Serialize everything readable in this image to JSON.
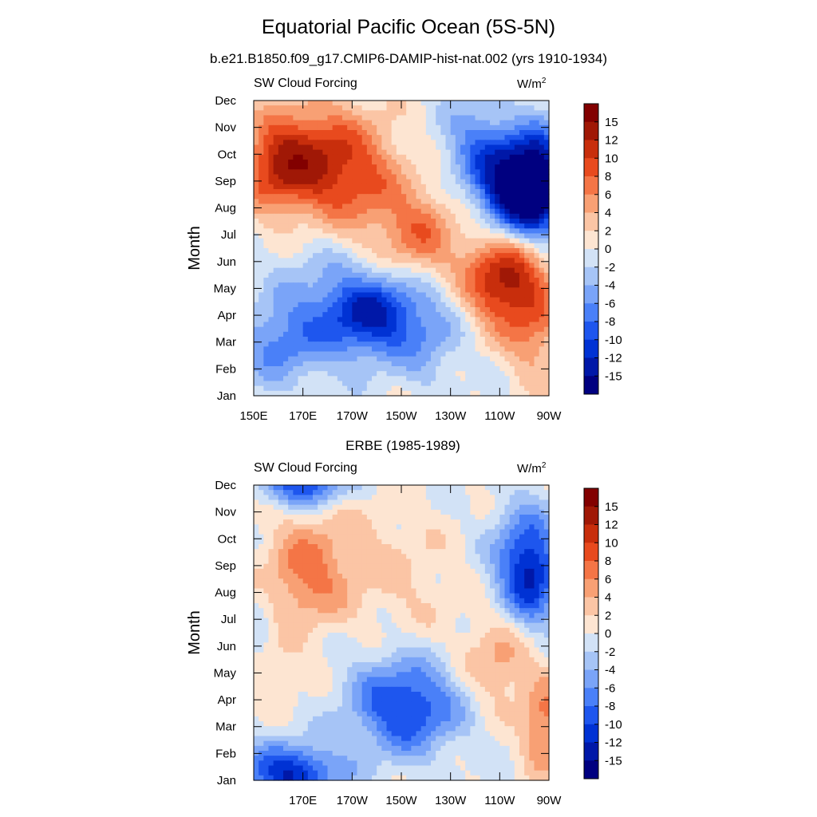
{
  "figure": {
    "title": "Equatorial Pacific Ocean (5S-5N)",
    "subtitle": "b.e21.B1850.f09_g17.CMIP6-DAMIP-hist-nat.002 (yrs 1910-1934)"
  },
  "colors": {
    "scale": [
      "#000080",
      "#0018a8",
      "#0032d4",
      "#1e56ee",
      "#4a80f8",
      "#7aa4f8",
      "#a6c4f6",
      "#d2e2f6",
      "#fde5d2",
      "#fbc5a5",
      "#f8a074",
      "#f47546",
      "#e84a1e",
      "#c82e0c",
      "#a01806",
      "#820000"
    ]
  },
  "chart_data": [
    {
      "type": "heatmap",
      "left_label": "SW Cloud Forcing",
      "units_base": "W/m",
      "units_exp": "2",
      "xlabel": "",
      "ylabel": "Month",
      "x_ticks": [
        "150E",
        "170E",
        "170W",
        "150W",
        "130W",
        "110W",
        "90W"
      ],
      "y_ticks": [
        "Jan",
        "Feb",
        "Mar",
        "Apr",
        "May",
        "Jun",
        "Jul",
        "Aug",
        "Sep",
        "Oct",
        "Nov",
        "Dec"
      ],
      "xlim": [
        150,
        270
      ],
      "ylim": [
        1,
        12
      ],
      "colorbar_labels": [
        "15",
        "12",
        "10",
        "8",
        "6",
        "4",
        "2",
        "0",
        "-2",
        "-4",
        "-6",
        "-8",
        "-10",
        "-12",
        "-15"
      ],
      "levels": [
        -15,
        -12,
        -10,
        -8,
        -6,
        -4,
        -2,
        0,
        2,
        4,
        6,
        8,
        10,
        12,
        15
      ],
      "features": [
        {
          "lon": 158,
          "month": 9.5,
          "amp": 6,
          "slon": 10,
          "smon": 1.2
        },
        {
          "lon": 170,
          "month": 9.8,
          "amp": 9,
          "slon": 14,
          "smon": 1.4
        },
        {
          "lon": 190,
          "month": 9.6,
          "amp": 5,
          "slon": 14,
          "smon": 1.5
        },
        {
          "lon": 195,
          "month": 8.6,
          "amp": 3,
          "slon": 12,
          "smon": 1.5
        },
        {
          "lon": 216,
          "month": 6.9,
          "amp": 5,
          "slon": 12,
          "smon": 1.2
        },
        {
          "lon": 220,
          "month": 7.3,
          "amp": 2,
          "slon": 10,
          "smon": 1.4
        },
        {
          "lon": 248,
          "month": 5.4,
          "amp": 9,
          "slon": 10,
          "smon": 1.2
        },
        {
          "lon": 260,
          "month": 5.0,
          "amp": 7,
          "slon": 10,
          "smon": 1.3
        },
        {
          "lon": 265,
          "month": 3.0,
          "amp": 4,
          "slon": 8,
          "smon": 1.2
        },
        {
          "lon": 258,
          "month": 8.8,
          "amp": -21,
          "slon": 10,
          "smon": 1.2
        },
        {
          "lon": 268,
          "month": 9.0,
          "amp": -8,
          "slon": 6,
          "smon": 1.5
        },
        {
          "lon": 240,
          "month": 10.3,
          "amp": -6,
          "slon": 10,
          "smon": 1.3
        },
        {
          "lon": 200,
          "month": 4.1,
          "amp": -9,
          "slon": 15,
          "smon": 1.1
        },
        {
          "lon": 190,
          "month": 3.7,
          "amp": -4,
          "slon": 17,
          "smon": 1.2
        },
        {
          "lon": 160,
          "month": 2.9,
          "amp": -6,
          "slon": 12,
          "smon": 1.1
        },
        {
          "lon": 222,
          "month": 3.0,
          "amp": -3,
          "slon": 10,
          "smon": 1.3
        },
        {
          "lon": 175,
          "month": 5.5,
          "amp": -2,
          "slon": 15,
          "smon": 1.4
        }
      ]
    },
    {
      "type": "heatmap",
      "panel_title": "ERBE (1985-1989)",
      "left_label": "SW Cloud Forcing",
      "units_base": "W/m",
      "units_exp": "2",
      "xlabel": "",
      "ylabel": "Month",
      "x_ticks": [
        "170E",
        "170W",
        "150W",
        "130W",
        "110W",
        "90W"
      ],
      "y_ticks": [
        "Jan",
        "Feb",
        "Mar",
        "Apr",
        "May",
        "Jun",
        "Jul",
        "Aug",
        "Sep",
        "Oct",
        "Nov",
        "Dec"
      ],
      "xlim": [
        150,
        270
      ],
      "ylim": [
        1,
        12
      ],
      "colorbar_labels": [
        "15",
        "12",
        "10",
        "8",
        "6",
        "4",
        "2",
        "0",
        "-2",
        "-4",
        "-6",
        "-8",
        "-10",
        "-12",
        "-15"
      ],
      "levels": [
        -15,
        -12,
        -10,
        -8,
        -6,
        -4,
        -2,
        0,
        2,
        4,
        6,
        8,
        10,
        12,
        15
      ],
      "features": [
        {
          "lon": 170,
          "month": 8.6,
          "amp": 6,
          "slon": 12,
          "smon": 1.4
        },
        {
          "lon": 185,
          "month": 9.6,
          "amp": 2,
          "slon": 14,
          "smon": 1.6
        },
        {
          "lon": 212,
          "month": 8.5,
          "amp": 2,
          "slon": 14,
          "smon": 1.7
        },
        {
          "lon": 250,
          "month": 5.5,
          "amp": 5,
          "slon": 10,
          "smon": 1.2
        },
        {
          "lon": 268,
          "month": 3.0,
          "amp": 7,
          "slon": 6,
          "smon": 1.2
        },
        {
          "lon": 157,
          "month": 5.2,
          "amp": 3,
          "slon": 8,
          "smon": 0.7
        },
        {
          "lon": 260,
          "month": 9.0,
          "amp": -10,
          "slon": 9,
          "smon": 1.5
        },
        {
          "lon": 265,
          "month": 8.5,
          "amp": -4,
          "slon": 6,
          "smon": 1.2
        },
        {
          "lon": 215,
          "month": 3.7,
          "amp": -9,
          "slon": 14,
          "smon": 1.2
        },
        {
          "lon": 200,
          "month": 4.0,
          "amp": -3,
          "slon": 12,
          "smon": 1.4
        },
        {
          "lon": 165,
          "month": 1.2,
          "amp": -12,
          "slon": 14,
          "smon": 0.8
        },
        {
          "lon": 170,
          "month": 12.1,
          "amp": -11,
          "slon": 12,
          "smon": 0.6
        },
        {
          "lon": 152,
          "month": 6.5,
          "amp": -2,
          "slon": 6,
          "smon": 1.5
        }
      ]
    }
  ]
}
